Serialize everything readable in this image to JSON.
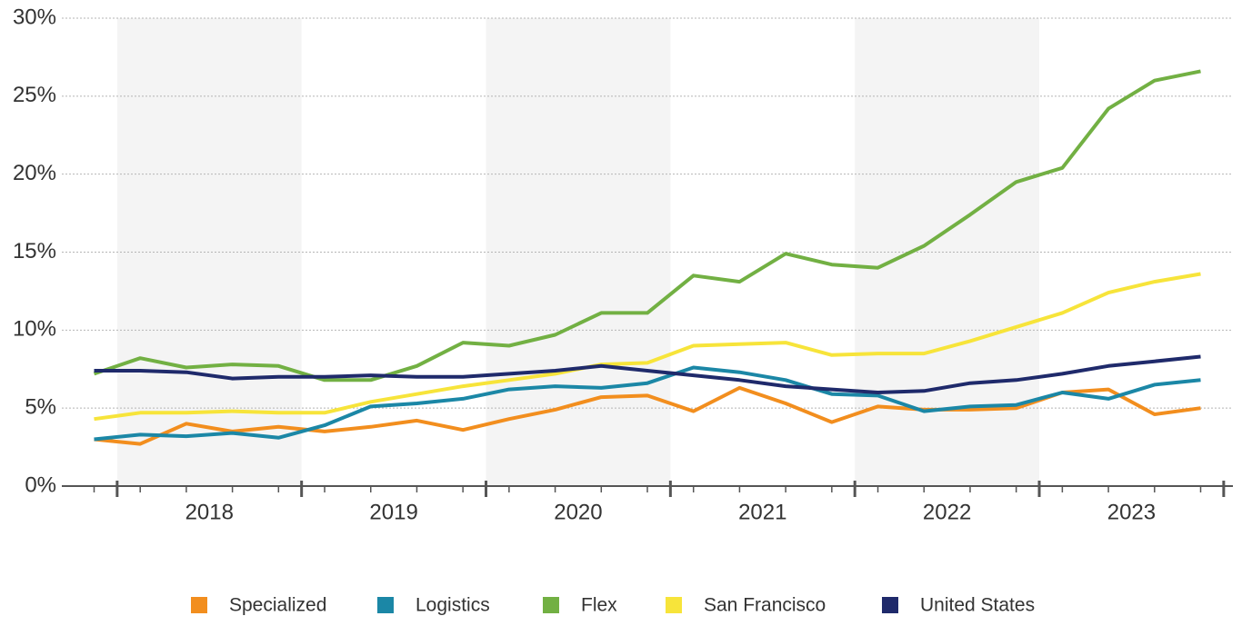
{
  "chart_data": {
    "type": "line",
    "x": [
      2017.875,
      2018.125,
      2018.375,
      2018.625,
      2018.875,
      2019.125,
      2019.375,
      2019.625,
      2019.875,
      2020.125,
      2020.375,
      2020.625,
      2020.875,
      2021.125,
      2021.375,
      2021.625,
      2021.875,
      2022.125,
      2022.375,
      2022.625,
      2022.875,
      2023.125,
      2023.375,
      2023.625,
      2023.875
    ],
    "xlim": [
      2017.7,
      2024.05
    ],
    "xticks": [
      {
        "value": 2018.5,
        "label": "2018"
      },
      {
        "value": 2019.5,
        "label": "2019"
      },
      {
        "value": 2020.5,
        "label": "2020"
      },
      {
        "value": 2021.5,
        "label": "2021"
      },
      {
        "value": 2022.5,
        "label": "2022"
      },
      {
        "value": 2023.5,
        "label": "2023"
      }
    ],
    "ylim": [
      0,
      30
    ],
    "yticks": [
      {
        "value": 0,
        "label": "0%"
      },
      {
        "value": 5,
        "label": "5%"
      },
      {
        "value": 10,
        "label": "10%"
      },
      {
        "value": 15,
        "label": "15%"
      },
      {
        "value": 20,
        "label": "20%"
      },
      {
        "value": 25,
        "label": "25%"
      },
      {
        "value": 30,
        "label": "30%"
      }
    ],
    "grid": true,
    "legend": "bottom",
    "series": [
      {
        "name": "Specialized",
        "color": "#f28e1e",
        "values": [
          3.0,
          2.7,
          4.0,
          3.5,
          3.8,
          3.5,
          3.8,
          4.2,
          3.6,
          4.3,
          4.9,
          5.7,
          5.8,
          4.8,
          6.3,
          5.3,
          4.1,
          5.1,
          4.9,
          4.9,
          5.0,
          6.0,
          6.2,
          4.6,
          5.0
        ]
      },
      {
        "name": "Logistics",
        "color": "#1b87a6",
        "values": [
          3.0,
          3.3,
          3.2,
          3.4,
          3.1,
          3.9,
          5.1,
          5.3,
          5.6,
          6.2,
          6.4,
          6.3,
          6.6,
          7.6,
          7.3,
          6.8,
          5.9,
          5.8,
          4.8,
          5.1,
          5.2,
          6.0,
          5.6,
          6.5,
          6.8
        ]
      },
      {
        "name": "Flex",
        "color": "#72b043",
        "values": [
          7.2,
          8.2,
          7.6,
          7.8,
          7.7,
          6.8,
          6.8,
          7.7,
          9.2,
          9.0,
          9.7,
          11.1,
          11.1,
          13.5,
          13.1,
          14.9,
          14.2,
          14.0,
          15.4,
          17.4,
          19.5,
          20.4,
          24.2,
          26.0,
          26.6
        ]
      },
      {
        "name": "San Francisco",
        "color": "#f7e43a",
        "values": [
          4.3,
          4.7,
          4.7,
          4.8,
          4.7,
          4.7,
          5.4,
          5.9,
          6.4,
          6.8,
          7.2,
          7.8,
          7.9,
          9.0,
          9.1,
          9.2,
          8.4,
          8.5,
          8.5,
          9.3,
          10.2,
          11.1,
          12.4,
          13.1,
          13.6
        ]
      },
      {
        "name": "United States",
        "color": "#1f2a6b",
        "values": [
          7.4,
          7.4,
          7.3,
          6.9,
          7.0,
          7.0,
          7.1,
          7.0,
          7.0,
          7.2,
          7.4,
          7.7,
          7.4,
          7.1,
          6.8,
          6.4,
          6.2,
          6.0,
          6.1,
          6.6,
          6.8,
          7.2,
          7.7,
          8.0,
          8.3
        ]
      }
    ]
  }
}
